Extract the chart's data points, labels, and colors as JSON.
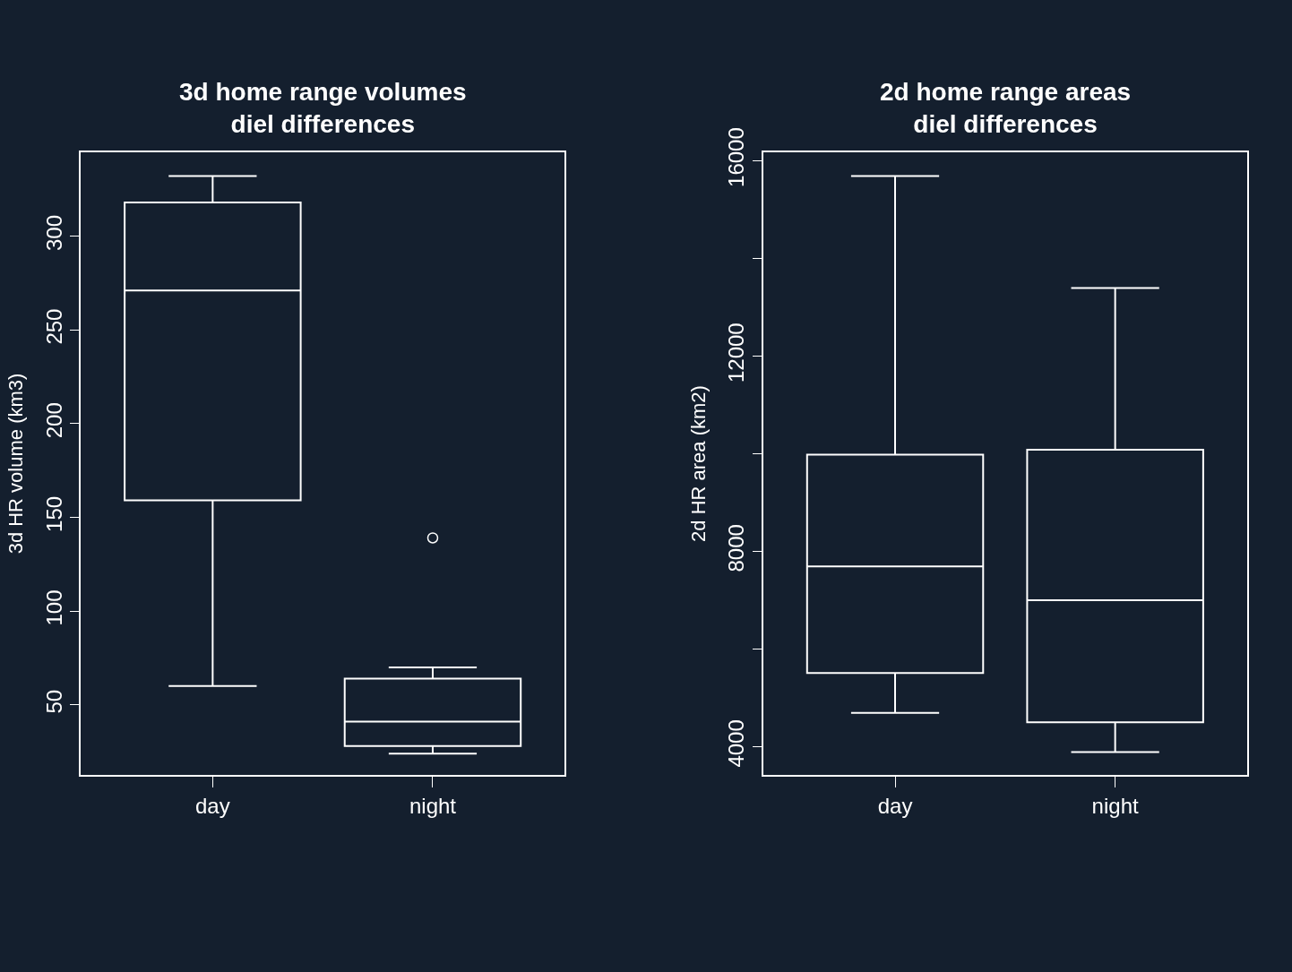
{
  "chart_data": [
    {
      "type": "box",
      "title": "3d home range volumes\ndiel differences",
      "ylabel": "3d HR volume (km3)",
      "categories": [
        "day",
        "night"
      ],
      "color": "#ffffff",
      "boxes": [
        {
          "low": 60,
          "q1": 159,
          "median": 271,
          "q3": 318,
          "high": 332
        },
        {
          "low": 24,
          "q1": 28,
          "median": 41,
          "q3": 64,
          "high": 70,
          "outliers": [
            139
          ]
        }
      ],
      "ylim": [
        12.6,
        344.7
      ],
      "yticks": [
        50,
        100,
        150,
        200,
        250,
        300
      ],
      "grid": false
    },
    {
      "type": "box",
      "title": "2d home range areas\ndiel differences",
      "ylabel": "2d HR area (km2)",
      "categories": [
        "day",
        "night"
      ],
      "color": "#ffffff",
      "boxes": [
        {
          "low": 4690,
          "q1": 5510,
          "median": 7690,
          "q3": 9980,
          "high": 15680
        },
        {
          "low": 3890,
          "q1": 4500,
          "median": 7000,
          "q3": 10080,
          "high": 13390
        }
      ],
      "ylim": [
        3422,
        16168
      ],
      "yticks": [
        4000,
        {
          "value": 6000,
          "label": null
        },
        8000,
        {
          "value": 10000,
          "label": null
        },
        12000,
        {
          "value": 14000,
          "label": null
        },
        16000
      ],
      "grid": false
    }
  ]
}
